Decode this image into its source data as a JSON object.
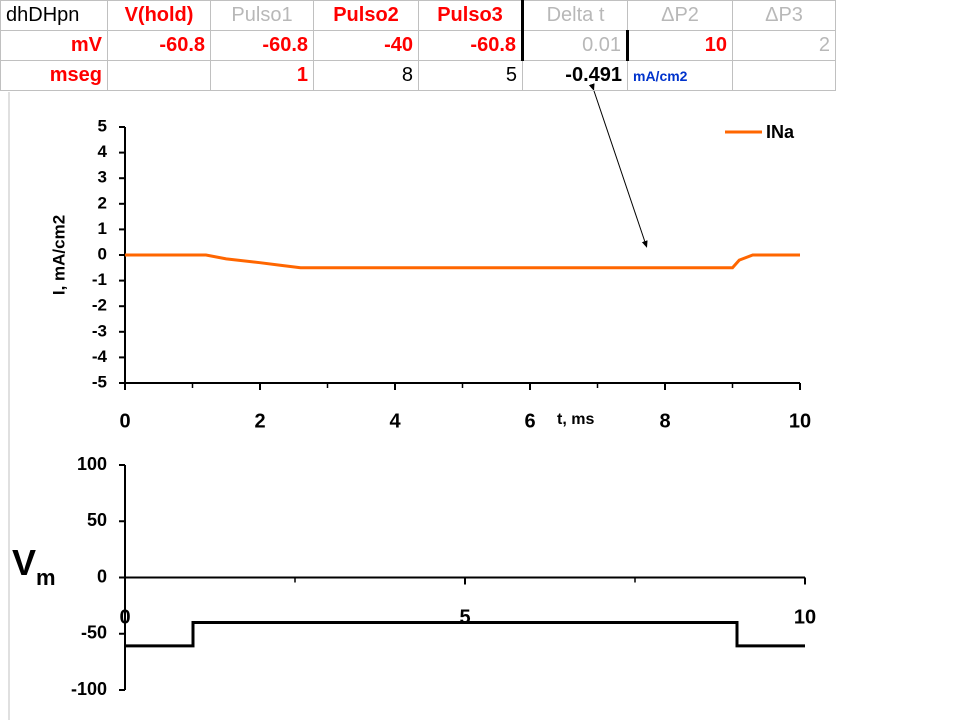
{
  "table": {
    "rows": [
      [
        "dhDHpn",
        "V(hold)",
        "Pulso1",
        "Pulso2",
        "Pulso3",
        "Delta t",
        "ΔP2",
        "ΔP3"
      ],
      [
        "mV",
        "-60.8",
        "-60.8",
        "-40",
        "-60.8",
        "0.01",
        "10",
        "2"
      ],
      [
        "mseg",
        "",
        "1",
        "8",
        "5",
        "-0.491",
        "mA/cm2",
        ""
      ]
    ]
  },
  "chart_data": [
    {
      "type": "line",
      "ylabel": "I, mA/cm2",
      "xlabel": "t, ms",
      "xlim": [
        0,
        10
      ],
      "xticks": [
        0,
        2,
        4,
        6,
        8,
        10
      ],
      "ylim": [
        -5,
        5
      ],
      "yticks": [
        -5,
        -4,
        -3,
        -2,
        -1,
        0,
        1,
        2,
        3,
        4,
        5
      ],
      "legend": "top-right",
      "x": [
        0,
        1.2,
        1.5,
        2,
        2.3,
        2.6,
        9.0,
        9.1,
        9.3,
        10
      ],
      "series": [
        {
          "name": "INa",
          "color": "#ff6600",
          "values": [
            0,
            0,
            -0.15,
            -0.3,
            -0.4,
            -0.5,
            -0.5,
            -0.2,
            0,
            0
          ]
        }
      ]
    },
    {
      "type": "line",
      "ylabel": "V",
      "ylabel_sub": "m",
      "xlim": [
        0,
        10
      ],
      "xticks": [
        0,
        5,
        10
      ],
      "ylim": [
        -100,
        100
      ],
      "yticks": [
        -100,
        -50,
        0,
        50,
        100
      ],
      "x": [
        0,
        1,
        1,
        9,
        9,
        10
      ],
      "series": [
        {
          "name": "Vm",
          "color": "#000000",
          "values": [
            -60.8,
            -60.8,
            -40,
            -40,
            -60.8,
            -60.8
          ]
        }
      ]
    }
  ]
}
